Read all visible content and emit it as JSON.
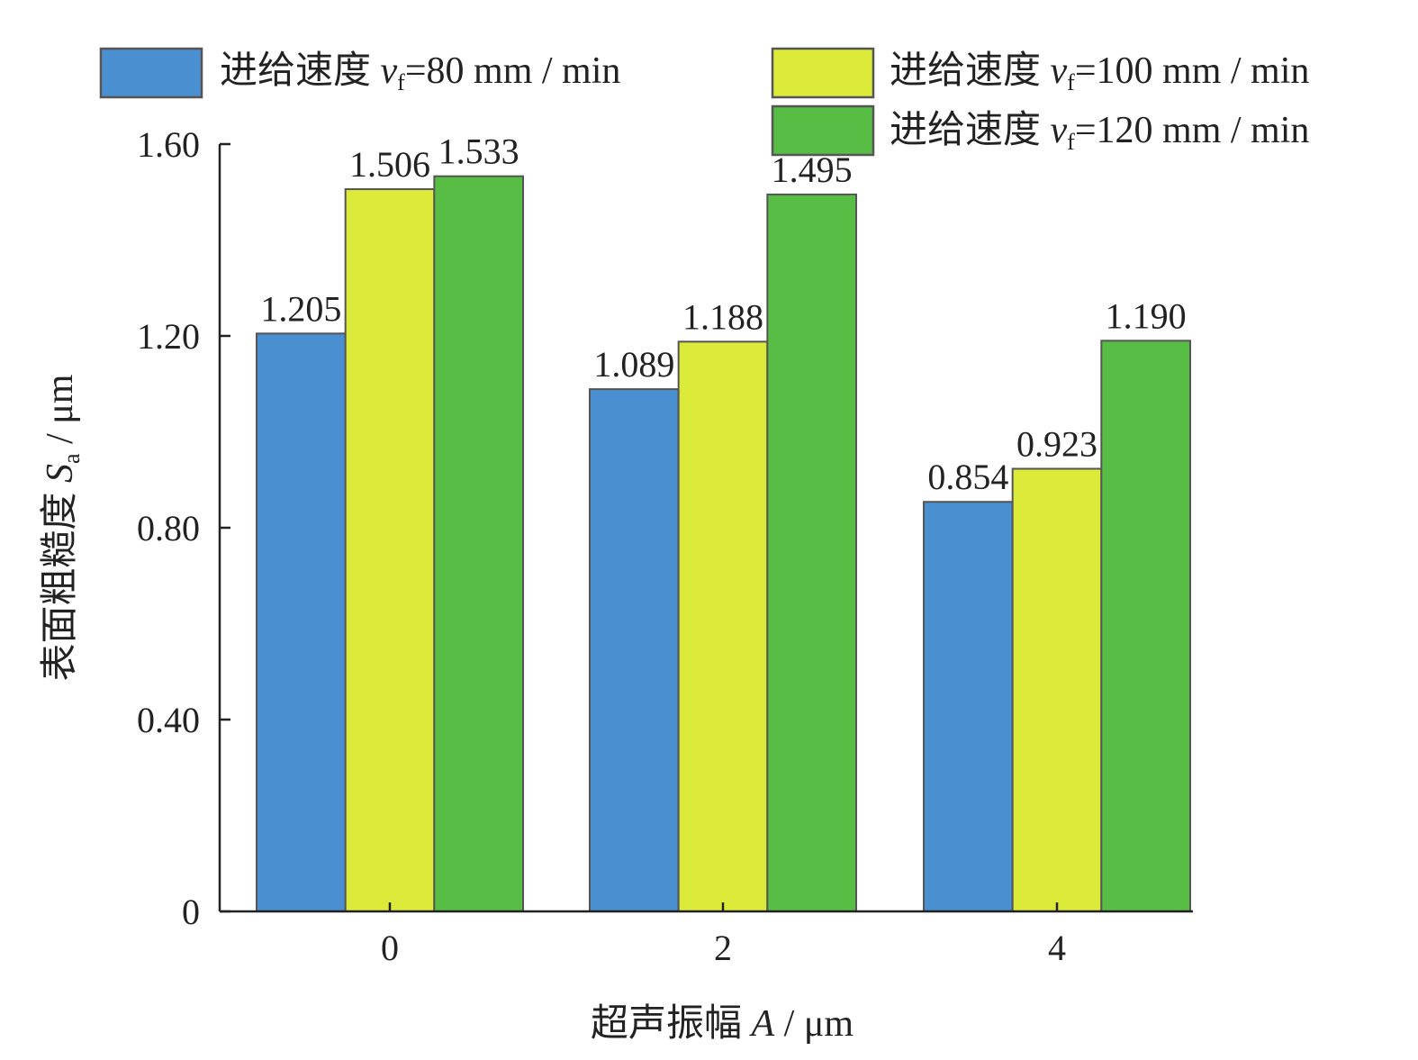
{
  "chart_data": {
    "type": "bar",
    "categories": [
      "0",
      "2",
      "4"
    ],
    "series": [
      {
        "name": "进给速度 vf=80 mm / min",
        "name_prefix": "进给速度 ",
        "name_var": "v",
        "name_sub": "f",
        "name_suffix": "=80 mm / min",
        "color": "#4a8fd0",
        "values": [
          1.205,
          1.089,
          0.854
        ]
      },
      {
        "name": "进给速度 vf=100 mm / min",
        "name_prefix": "进给速度 ",
        "name_var": "v",
        "name_sub": "f",
        "name_suffix": "=100 mm / min",
        "color": "#dceb3a",
        "values": [
          1.506,
          1.188,
          0.923
        ]
      },
      {
        "name": "进给速度 vf=120 mm / min",
        "name_prefix": "进给速度 ",
        "name_var": "v",
        "name_sub": "f",
        "name_suffix": "=120 mm / min",
        "color": "#58bd45",
        "values": [
          1.533,
          1.495,
          1.19
        ]
      }
    ],
    "data_labels": [
      [
        "1.205",
        "1.089",
        "0.854"
      ],
      [
        "1.506",
        "1.188",
        "0.923"
      ],
      [
        "1.533",
        "1.495",
        "1.190"
      ]
    ],
    "xlabel": "超声振幅 A / μm",
    "xlabel_prefix": "超声振幅 ",
    "xlabel_var": "A",
    "xlabel_suffix": " / μm",
    "ylabel": "表面粗糙度 Sa / μm",
    "ylabel_prefix": "表面粗糙度 ",
    "ylabel_var": "S",
    "ylabel_sub": "a",
    "ylabel_suffix": " / μm",
    "yticks": [
      0,
      0.4,
      0.8,
      1.2,
      1.6
    ],
    "ytick_labels": [
      "0",
      "0.40",
      "0.80",
      "1.20",
      "1.60"
    ],
    "ylim": [
      0,
      1.6
    ],
    "grid": false,
    "legend_position": "top"
  }
}
